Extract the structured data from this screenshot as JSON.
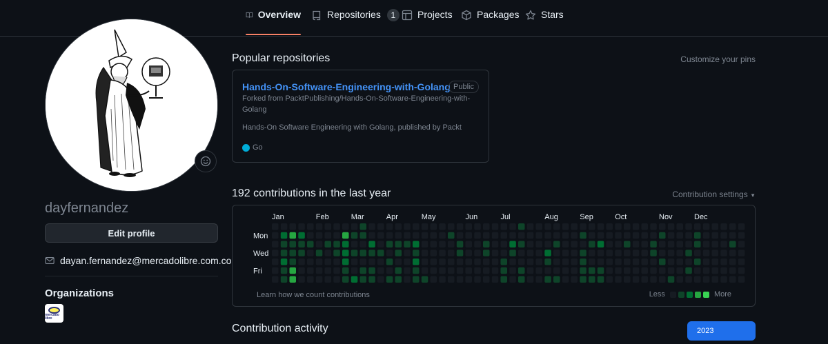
{
  "tabs": [
    {
      "label": "Overview",
      "icon": "book-icon",
      "active": true
    },
    {
      "label": "Repositories",
      "icon": "repo-icon",
      "count": "1"
    },
    {
      "label": "Projects",
      "icon": "table-icon"
    },
    {
      "label": "Packages",
      "icon": "package-icon"
    },
    {
      "label": "Stars",
      "icon": "star-icon"
    }
  ],
  "profile": {
    "username": "dayfernandez",
    "edit_label": "Edit profile",
    "email": "dayan.fernandez@mercadolibre.com.co",
    "orgs_title": "Organizations",
    "org_logo_text": "mercado libre"
  },
  "popular": {
    "title": "Popular repositories",
    "customize_label": "Customize your pins",
    "repo": {
      "name": "Hands-On-Software-Engineering-with-Golang",
      "visibility": "Public",
      "forked_from": "Forked from PacktPublishing/Hands-On-Software-Engineering-with-Golang",
      "description": "Hands-On Software Engineering with Golang, published by Packt",
      "language": "Go",
      "language_color": "#00add8"
    }
  },
  "contributions": {
    "title": "192 contributions in the last year",
    "settings_label": "Contribution settings",
    "months": [
      "Jan",
      "Feb",
      "Mar",
      "Apr",
      "May",
      "Jun",
      "Jul",
      "Aug",
      "Sep",
      "Oct",
      "Nov",
      "Dec"
    ],
    "month_week_index": [
      0,
      5,
      9,
      13,
      17,
      22,
      26,
      31,
      35,
      39,
      44,
      48
    ],
    "days": [
      "Mon",
      "Wed",
      "Fri"
    ],
    "levels_colors": [
      "#161b22",
      "#0e4429",
      "#006d32",
      "#26a641",
      "#39d353"
    ],
    "grid": [
      "0000000",
      "0211211",
      "0311133",
      "0211000",
      "0010000",
      "0001000",
      "0010000",
      "0011000",
      "0322211",
      "0101002",
      "1101011",
      "0021011",
      "0001000",
      "0010101",
      "0011011",
      "0010000",
      "0021211",
      "0000001",
      "0000000",
      "0000000",
      "0100000",
      "0011000",
      "0000000",
      "0000000",
      "0011000",
      "0000000",
      "0000111",
      "0021000",
      "1010011",
      "0000000",
      "0000000",
      "0002101",
      "0010001",
      "0000000",
      "0000000",
      "0101111",
      "0010011",
      "0020011",
      "0000000",
      "0000000",
      "0010000",
      "0000000",
      "0000000",
      "0011000",
      "0100100",
      "0000001",
      "0000000",
      "0001010",
      "0110100",
      "0000000",
      "0000000",
      "0000000",
      "0010000",
      "0000000"
    ],
    "learn_label": "Learn how we count contributions",
    "less_label": "Less",
    "more_label": "More"
  },
  "activity": {
    "title": "Contribution activity",
    "year": "2023"
  }
}
